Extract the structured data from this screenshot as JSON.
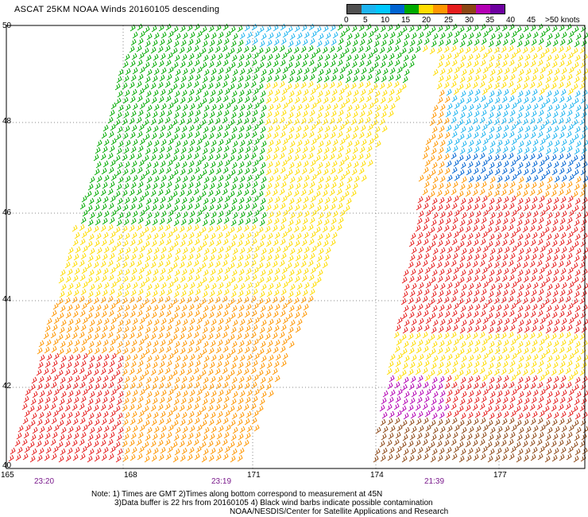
{
  "title": "ASCAT 25KM NOAA Winds 20160105 descending",
  "latitude_labels": [
    "50",
    "48",
    "46",
    "44",
    "42",
    "40"
  ],
  "longitude_labels": [
    "165",
    "168",
    "171",
    "174",
    "177"
  ],
  "time_labels": [
    "23:20",
    "23:19",
    "21:39"
  ],
  "legend": {
    "ticks": [
      "0",
      "5",
      "10",
      "15",
      "20",
      "25",
      "30",
      "35",
      "40",
      "45",
      ">50 knots"
    ],
    "colors": [
      "#505050",
      "#1eb4f0",
      "#00c8ff",
      "#0064d2",
      "#00aa00",
      "#ffdc00",
      "#ff9600",
      "#e61e1e",
      "#8c4614",
      "#b400b4",
      "#6e00a0"
    ]
  },
  "footer": {
    "line1": "Note: 1) Times are GMT 2)Times along bottom correspond to measurement at 45N",
    "line2": "3)Data buffer is 22 hrs from 20160105 4) Black wind barbs indicate possible contamination",
    "line3": "NOAA/NESDIS/Center for Satellite Applications and Research"
  }
}
